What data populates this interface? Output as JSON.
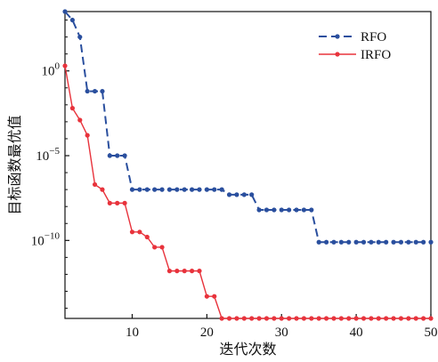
{
  "chart_data": {
    "type": "line",
    "xlabel": "迭代次数",
    "ylabel": "目标函数最优值",
    "x_ticks": [
      10,
      20,
      30,
      40,
      50
    ],
    "y_ticks": [
      {
        "exp": 0,
        "label": "10",
        "sup": "0"
      },
      {
        "exp": -5,
        "label": "10",
        "sup": "−5"
      },
      {
        "exp": -10,
        "label": "10",
        "sup": "−10"
      }
    ],
    "xlim": [
      1,
      50
    ],
    "y_scale": "log",
    "ylim_exp": [
      -14.6,
      3.5
    ],
    "grid": false,
    "legend_position": "top-right",
    "series": [
      {
        "name": "RFO",
        "color": "#2a4f9e",
        "dash": "dashed",
        "x": [
          1,
          2,
          3,
          4,
          5,
          6,
          7,
          8,
          9,
          10,
          11,
          12,
          13,
          14,
          15,
          16,
          17,
          18,
          19,
          20,
          21,
          22,
          23,
          24,
          25,
          26,
          27,
          28,
          29,
          30,
          31,
          32,
          33,
          34,
          35,
          36,
          37,
          38,
          39,
          40,
          41,
          42,
          43,
          44,
          45,
          46,
          47,
          48,
          49,
          50
        ],
        "y_exp": [
          3.5,
          3.0,
          2.0,
          -1.2,
          -1.2,
          -1.2,
          -5.0,
          -5.0,
          -5.0,
          -7.0,
          -7.0,
          -7.0,
          -7.0,
          -7.0,
          -7.0,
          -7.0,
          -7.0,
          -7.0,
          -7.0,
          -7.0,
          -7.0,
          -7.0,
          -7.3,
          -7.3,
          -7.3,
          -7.3,
          -8.2,
          -8.2,
          -8.2,
          -8.2,
          -8.2,
          -8.2,
          -8.2,
          -8.2,
          -10.1,
          -10.1,
          -10.1,
          -10.1,
          -10.1,
          -10.1,
          -10.1,
          -10.1,
          -10.1,
          -10.1,
          -10.1,
          -10.1,
          -10.1,
          -10.1,
          -10.1,
          -10.1
        ]
      },
      {
        "name": "IRFO",
        "color": "#e8333c",
        "dash": "solid",
        "x": [
          1,
          2,
          3,
          4,
          5,
          6,
          7,
          8,
          9,
          10,
          11,
          12,
          13,
          14,
          15,
          16,
          17,
          18,
          19,
          20,
          21,
          22,
          23,
          24,
          25,
          26,
          27,
          28,
          29,
          30,
          31,
          32,
          33,
          34,
          35,
          36,
          37,
          38,
          39,
          40,
          41,
          42,
          43,
          44,
          45,
          46,
          47,
          48,
          49,
          50
        ],
        "y_exp": [
          0.3,
          -2.2,
          -2.9,
          -3.8,
          -6.7,
          -7.0,
          -7.8,
          -7.8,
          -7.8,
          -9.5,
          -9.5,
          -9.8,
          -10.4,
          -10.4,
          -11.8,
          -11.8,
          -11.8,
          -11.8,
          -11.8,
          -13.3,
          -13.3,
          -14.6,
          -14.6,
          -14.6,
          -14.6,
          -14.6,
          -14.6,
          -14.6,
          -14.6,
          -14.6,
          -14.6,
          -14.6,
          -14.6,
          -14.6,
          -14.6,
          -14.6,
          -14.6,
          -14.6,
          -14.6,
          -14.6,
          -14.6,
          -14.6,
          -14.6,
          -14.6,
          -14.6,
          -14.6,
          -14.6,
          -14.6,
          -14.6,
          -14.6
        ]
      }
    ]
  }
}
